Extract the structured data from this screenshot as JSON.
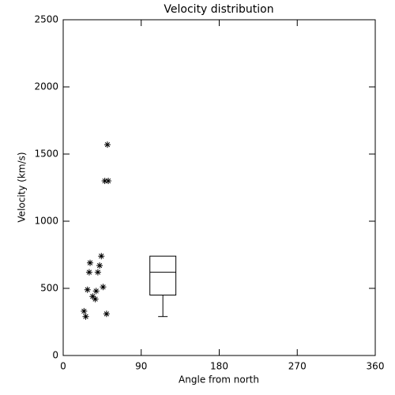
{
  "chart_data": {
    "type": "scatter",
    "title": "Velocity distribution",
    "x_label": "Angle from north",
    "y_label": "Velocity (km/s)",
    "xlim": [
      0,
      360
    ],
    "xticks": [
      0,
      90,
      180,
      270,
      360
    ],
    "ylim": [
      0,
      2500
    ],
    "yticks": [
      0,
      500,
      1000,
      1500,
      2000,
      2500
    ],
    "color": "#000000",
    "marker": "asterisk",
    "x": [
      51,
      48,
      52,
      44,
      42,
      31,
      30,
      40,
      46,
      28,
      38,
      34,
      37,
      24,
      26,
      50
    ],
    "values": [
      1570,
      1300,
      1300,
      740,
      670,
      690,
      620,
      620,
      510,
      490,
      480,
      440,
      420,
      330,
      290,
      310
    ],
    "box": {
      "x_range": [
        100,
        130
      ],
      "min": 290,
      "q1": 450,
      "median": 620,
      "q3": 740,
      "max": 740
    }
  }
}
